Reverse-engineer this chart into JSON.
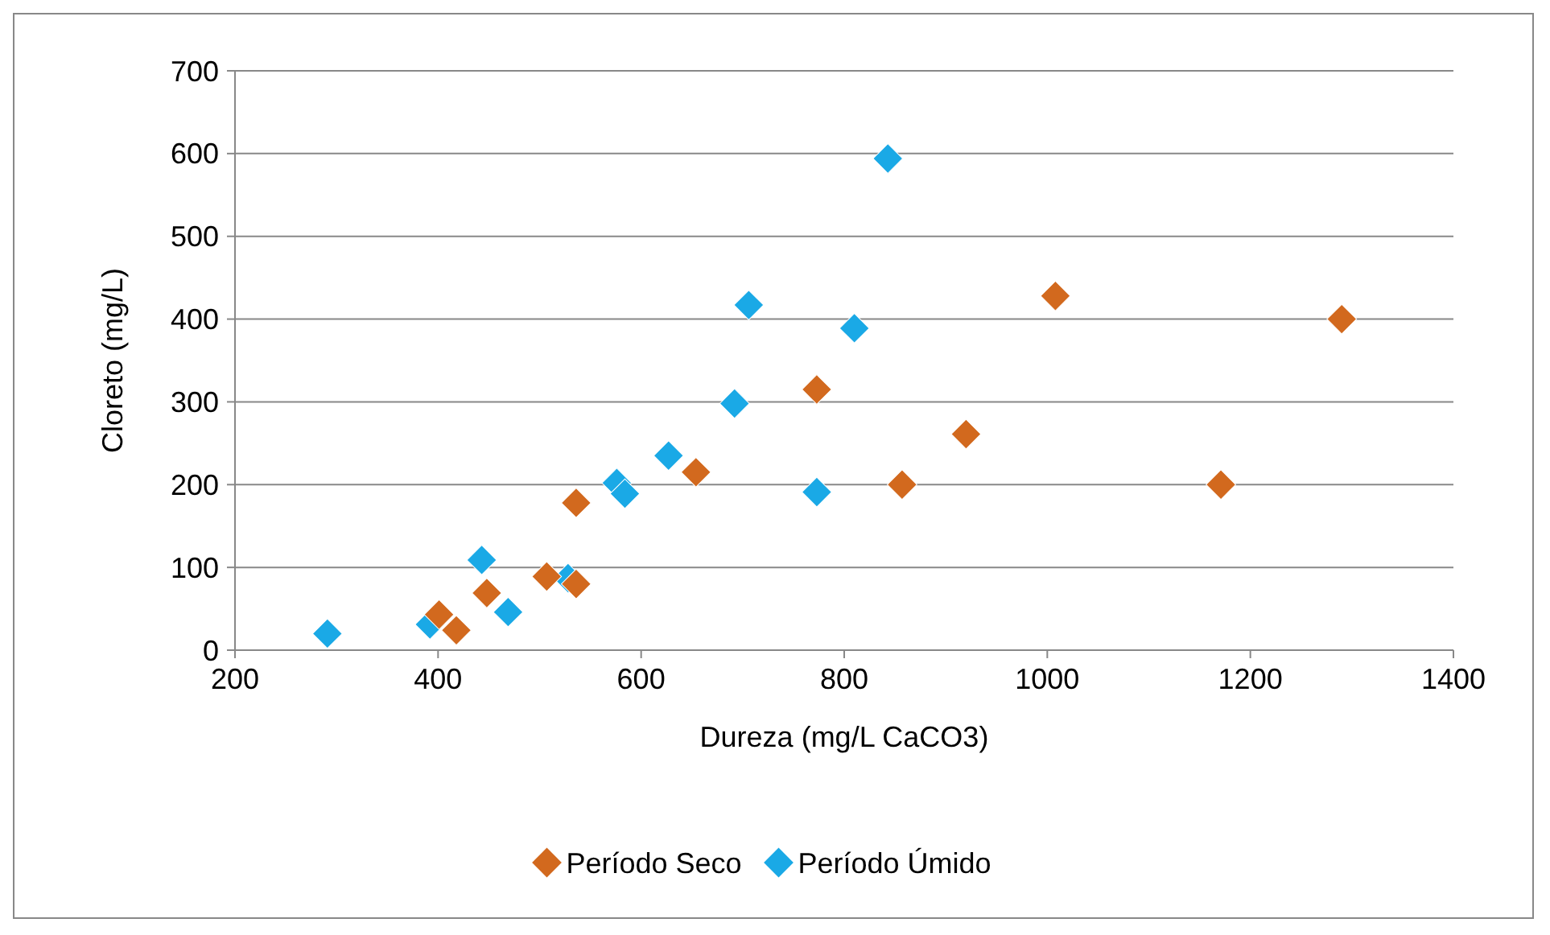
{
  "chart_data": {
    "type": "scatter",
    "xlabel": "Dureza (mg/L CaCO3)",
    "ylabel": "Cloreto (mg/L)",
    "xlim": [
      200,
      1400
    ],
    "xticks": [
      200,
      400,
      600,
      800,
      1000,
      1200,
      1400
    ],
    "ylim": [
      0,
      700
    ],
    "yticks": [
      0,
      100,
      200,
      300,
      400,
      500,
      600,
      700
    ],
    "grid": "y",
    "legend": "bottom",
    "marker": "diamond",
    "series": [
      {
        "name": "Período Seco",
        "color": "#d2691e",
        "x": [
          401,
          418,
          448,
          507,
          536,
          536,
          654,
          773,
          857,
          920,
          1008,
          1171,
          1290
        ],
        "values": [
          43,
          24,
          69,
          89,
          178,
          80,
          215,
          315,
          200,
          261,
          428,
          200,
          400
        ]
      },
      {
        "name": "Período Úmido",
        "color": "#1aa9e6",
        "x": [
          291,
          392,
          443,
          469,
          528,
          576,
          584,
          627,
          692,
          706,
          773,
          810,
          843
        ],
        "values": [
          20,
          31,
          109,
          46,
          87,
          202,
          189,
          235,
          298,
          417,
          191,
          389,
          594
        ]
      }
    ]
  }
}
